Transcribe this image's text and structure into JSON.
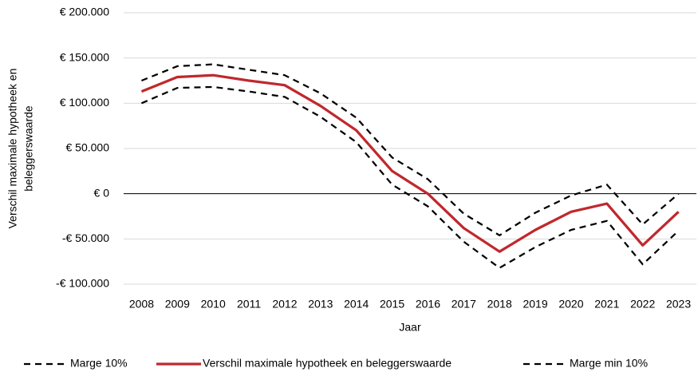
{
  "chart_data": {
    "type": "line",
    "x_label": "Jaar",
    "y_label": [
      "Verschil maximale hypotheek en",
      "beleggerswaarde"
    ],
    "categories": [
      "2008",
      "2009",
      "2010",
      "2011",
      "2012",
      "2013",
      "2014",
      "2015",
      "2016",
      "2017",
      "2018",
      "2019",
      "2020",
      "2021",
      "2022",
      "2023"
    ],
    "series": [
      {
        "name": "Marge 10%",
        "color": "#000000",
        "dashed": true,
        "values": [
          125000,
          141000,
          143000,
          137000,
          131000,
          111000,
          84000,
          40000,
          16000,
          -22000,
          -46000,
          -21000,
          -2000,
          10000,
          -34000,
          0
        ]
      },
      {
        "name": "Verschil maximale hypotheek en beleggerswaarde",
        "color": "#c0282d",
        "dashed": false,
        "values": [
          113000,
          129000,
          131000,
          125000,
          120000,
          97000,
          70000,
          25000,
          0,
          -38000,
          -64000,
          -40000,
          -20000,
          -11000,
          -57000,
          -20000
        ]
      },
      {
        "name": "Marge min 10%",
        "color": "#000000",
        "dashed": true,
        "values": [
          100000,
          117000,
          118000,
          113000,
          107000,
          85000,
          57000,
          10000,
          -14000,
          -53000,
          -82000,
          -59000,
          -40000,
          -30000,
          -78000,
          -41000
        ]
      }
    ],
    "ylim": [
      -100000,
      200000
    ],
    "yticks": [
      {
        "value": -100000,
        "label": "-€ 100.000"
      },
      {
        "value": -50000,
        "label": "-€ 50.000"
      },
      {
        "value": 0,
        "label": "€ 0"
      },
      {
        "value": 50000,
        "label": "€ 50.000"
      },
      {
        "value": 100000,
        "label": "€ 100.000"
      },
      {
        "value": 150000,
        "label": "€ 150.000"
      },
      {
        "value": 200000,
        "label": "€ 200.000"
      }
    ],
    "grid": true,
    "legend": "bottom"
  }
}
